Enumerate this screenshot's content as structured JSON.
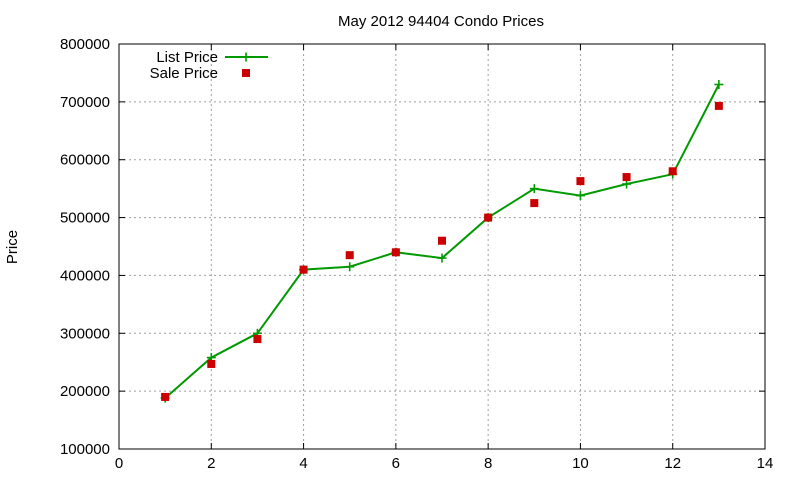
{
  "chart_data": {
    "type": "line",
    "title": "May 2012 94404 Condo Prices",
    "xlabel": "",
    "ylabel": "Price",
    "xlim": [
      0,
      14
    ],
    "ylim": [
      100000,
      800000
    ],
    "x_ticks": [
      0,
      2,
      4,
      6,
      8,
      10,
      12,
      14
    ],
    "y_ticks": [
      100000,
      200000,
      300000,
      400000,
      500000,
      600000,
      700000,
      800000
    ],
    "grid": true,
    "legend_position": "top-left",
    "series": [
      {
        "name": "List Price",
        "style": "line-plus",
        "color": "#009900",
        "x": [
          1,
          2,
          3,
          4,
          5,
          6,
          7,
          8,
          9,
          10,
          11,
          12,
          13
        ],
        "values": [
          188000,
          258000,
          300000,
          410000,
          415000,
          440000,
          430000,
          500000,
          550000,
          538000,
          558000,
          575000,
          730000
        ]
      },
      {
        "name": "Sale Price",
        "style": "square",
        "color": "#cc0000",
        "x": [
          1,
          2,
          3,
          4,
          5,
          6,
          7,
          8,
          9,
          10,
          11,
          12,
          13
        ],
        "values": [
          190000,
          247000,
          290000,
          410000,
          435000,
          440000,
          460000,
          500000,
          525000,
          563000,
          570000,
          580000,
          693000
        ]
      }
    ]
  }
}
